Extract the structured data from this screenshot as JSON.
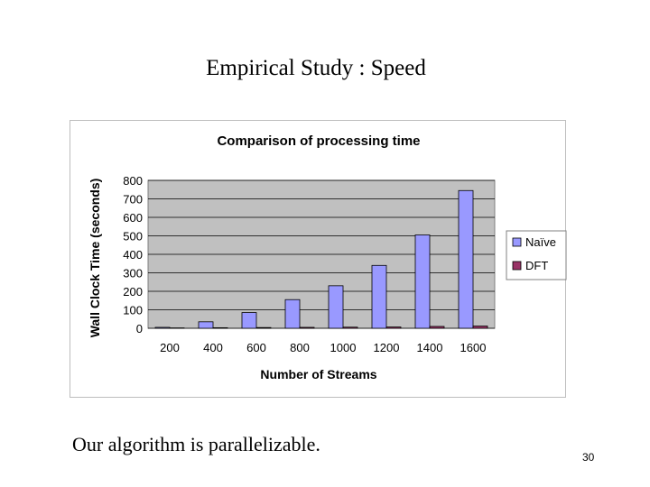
{
  "slide": {
    "title": "Empirical Study : Speed",
    "caption": "Our algorithm is parallelizable.",
    "page_number": "30"
  },
  "chart_data": {
    "type": "bar",
    "title": "Comparison of processing time",
    "xlabel": "Number of Streams",
    "ylabel": "Wall Clock Time (seconds)",
    "categories": [
      "200",
      "400",
      "600",
      "800",
      "1000",
      "1200",
      "1400",
      "1600"
    ],
    "series": [
      {
        "name": "Naïve",
        "values": [
          5,
          35,
          85,
          155,
          230,
          340,
          505,
          745
        ],
        "color": "#9999ff"
      },
      {
        "name": "DFT",
        "values": [
          2,
          3,
          4,
          5,
          6,
          7,
          10,
          12
        ],
        "color": "#993366"
      }
    ],
    "ylim": [
      0,
      800
    ],
    "yticks": [
      0,
      100,
      200,
      300,
      400,
      500,
      600,
      700,
      800
    ],
    "grid": true,
    "plot_background": "#c0c0c0",
    "legend_position": "right"
  }
}
